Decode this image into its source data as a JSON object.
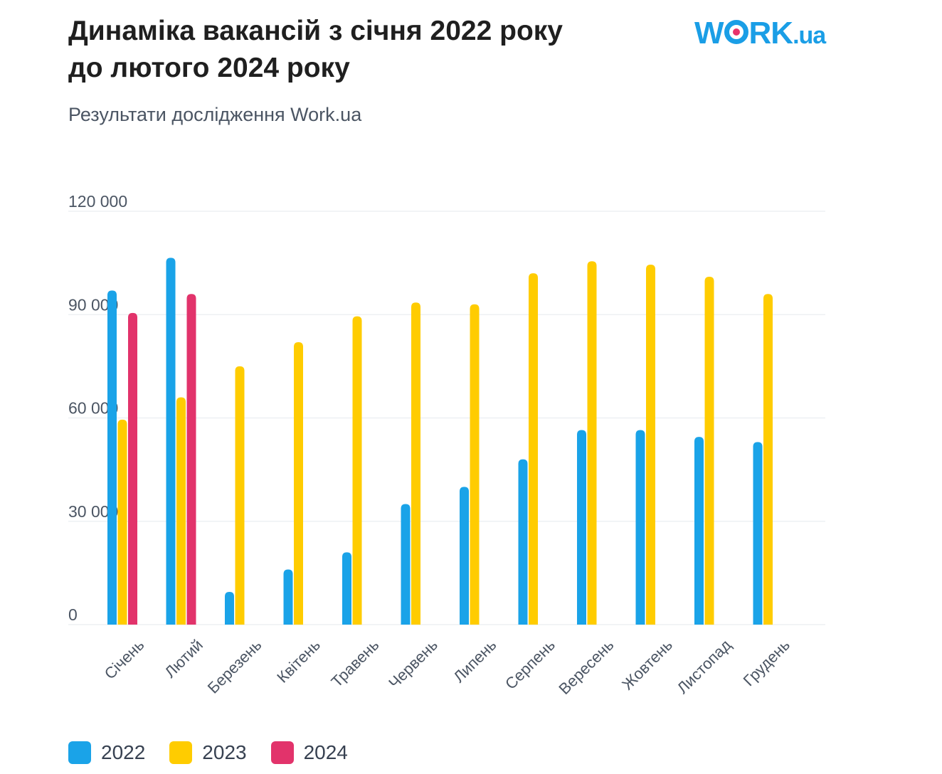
{
  "header": {
    "title_line1": "Динаміка вакансій з січня 2022 року",
    "title_line2": "до лютого 2024 року",
    "subtitle": "Результати дослідження Work.ua"
  },
  "logo": {
    "text_before": "W",
    "text_after": "RK",
    "suffix": ".ua",
    "color": "#1a9ee6",
    "dot_color": "#e8336c"
  },
  "chart_data": {
    "type": "bar",
    "categories": [
      "Січень",
      "Лютий",
      "Березень",
      "Квітень",
      "Травень",
      "Червень",
      "Липень",
      "Серпень",
      "Вересень",
      "Жовтень",
      "Листопад",
      "Грудень"
    ],
    "series": [
      {
        "name": "2022",
        "color": "#1aa3e8",
        "values": [
          97000,
          106500,
          9500,
          16000,
          21000,
          35000,
          40000,
          48000,
          56500,
          56500,
          54500,
          53000
        ]
      },
      {
        "name": "2023",
        "color": "#ffcc00",
        "values": [
          59500,
          66000,
          75000,
          82000,
          89500,
          93500,
          93000,
          102000,
          105500,
          104500,
          101000,
          96000
        ]
      },
      {
        "name": "2024",
        "color": "#e2336b",
        "values": [
          90500,
          96000,
          null,
          null,
          null,
          null,
          null,
          null,
          null,
          null,
          null,
          null
        ]
      }
    ],
    "ylim": [
      0,
      120000
    ],
    "yticks": [
      0,
      30000,
      60000,
      90000,
      120000
    ],
    "ytick_labels": [
      "0",
      "30 000",
      "60 000",
      "90 000",
      "120 000"
    ],
    "grid": true,
    "legend_position": "bottom-left",
    "title": "Динаміка вакансій з січня 2022 року до лютого 2024 року",
    "subtitle": "Результати дослідження Work.ua",
    "xlabel": "",
    "ylabel": ""
  }
}
